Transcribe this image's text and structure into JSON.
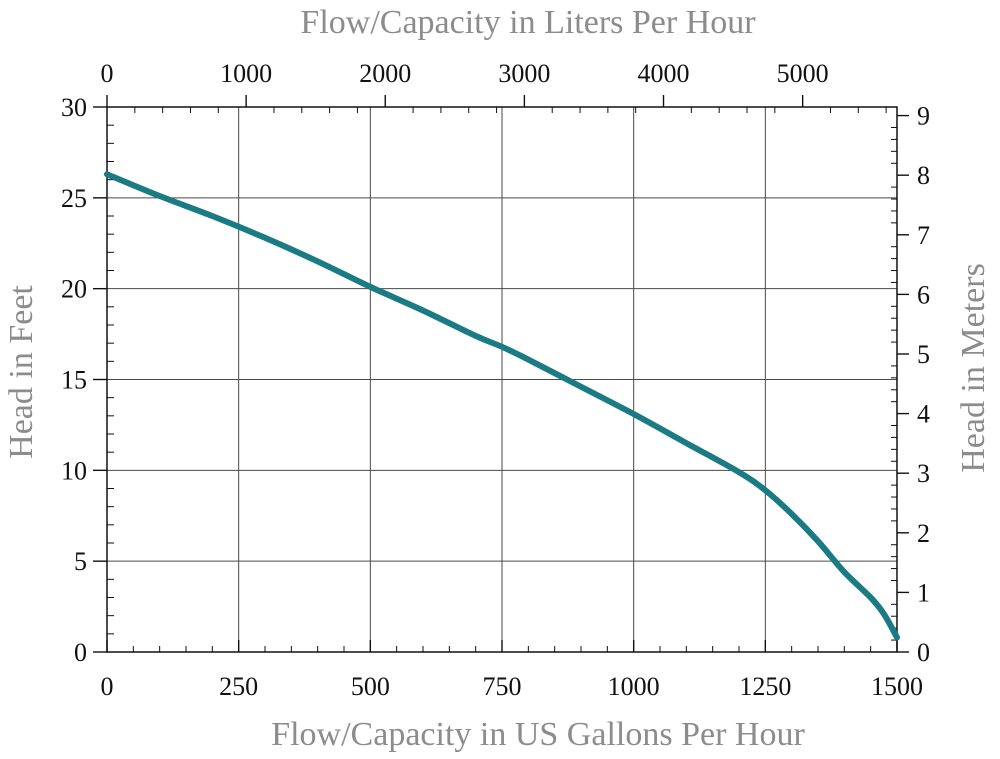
{
  "chart_data": {
    "type": "line",
    "title_top": "Flow/Capacity in Liters Per Hour",
    "xlabel": "Flow/Capacity in US Gallons Per Hour",
    "ylabel": "Head in Feet",
    "ylabel_right": "Head in Meters",
    "xlim": [
      0,
      1500
    ],
    "ylim": [
      0,
      30
    ],
    "x_top_lim": [
      0,
      5678.1
    ],
    "y_right_lim": [
      0,
      9.144
    ],
    "x_ticks": [
      0,
      250,
      500,
      750,
      1000,
      1250,
      1500
    ],
    "x_tick_labels": [
      "0",
      "250",
      "500",
      "750",
      "1000",
      "1250",
      "1500"
    ],
    "y_ticks": [
      0,
      5,
      10,
      15,
      20,
      25,
      30
    ],
    "y_tick_labels": [
      "0",
      "5",
      "10",
      "15",
      "20",
      "25",
      "30"
    ],
    "x_top_ticks": [
      0,
      1000,
      2000,
      3000,
      4000,
      5000
    ],
    "x_top_tick_labels": [
      "0",
      "1000",
      "2000",
      "3000",
      "4000",
      "5000"
    ],
    "y_right_ticks": [
      0,
      1,
      2,
      3,
      4,
      5,
      6,
      7,
      8,
      9
    ],
    "y_right_tick_labels": [
      "0",
      "1",
      "2",
      "3",
      "4",
      "5",
      "6",
      "7",
      "8",
      "9"
    ],
    "grid": true,
    "series": [
      {
        "x": [
          0,
          100,
          200,
          300,
          400,
          500,
          600,
          700,
          750,
          800,
          900,
          1000,
          1100,
          1200,
          1250,
          1300,
          1350,
          1400,
          1450,
          1475,
          1500
        ],
        "y": [
          26.3,
          25.1,
          24.0,
          22.8,
          21.5,
          20.1,
          18.8,
          17.4,
          16.8,
          16.1,
          14.6,
          13.1,
          11.5,
          9.9,
          8.9,
          7.6,
          6.1,
          4.4,
          3.0,
          2.1,
          0.8
        ]
      }
    ],
    "colors": {
      "line": "#1b7b85",
      "title": "#8c8c8c"
    }
  }
}
